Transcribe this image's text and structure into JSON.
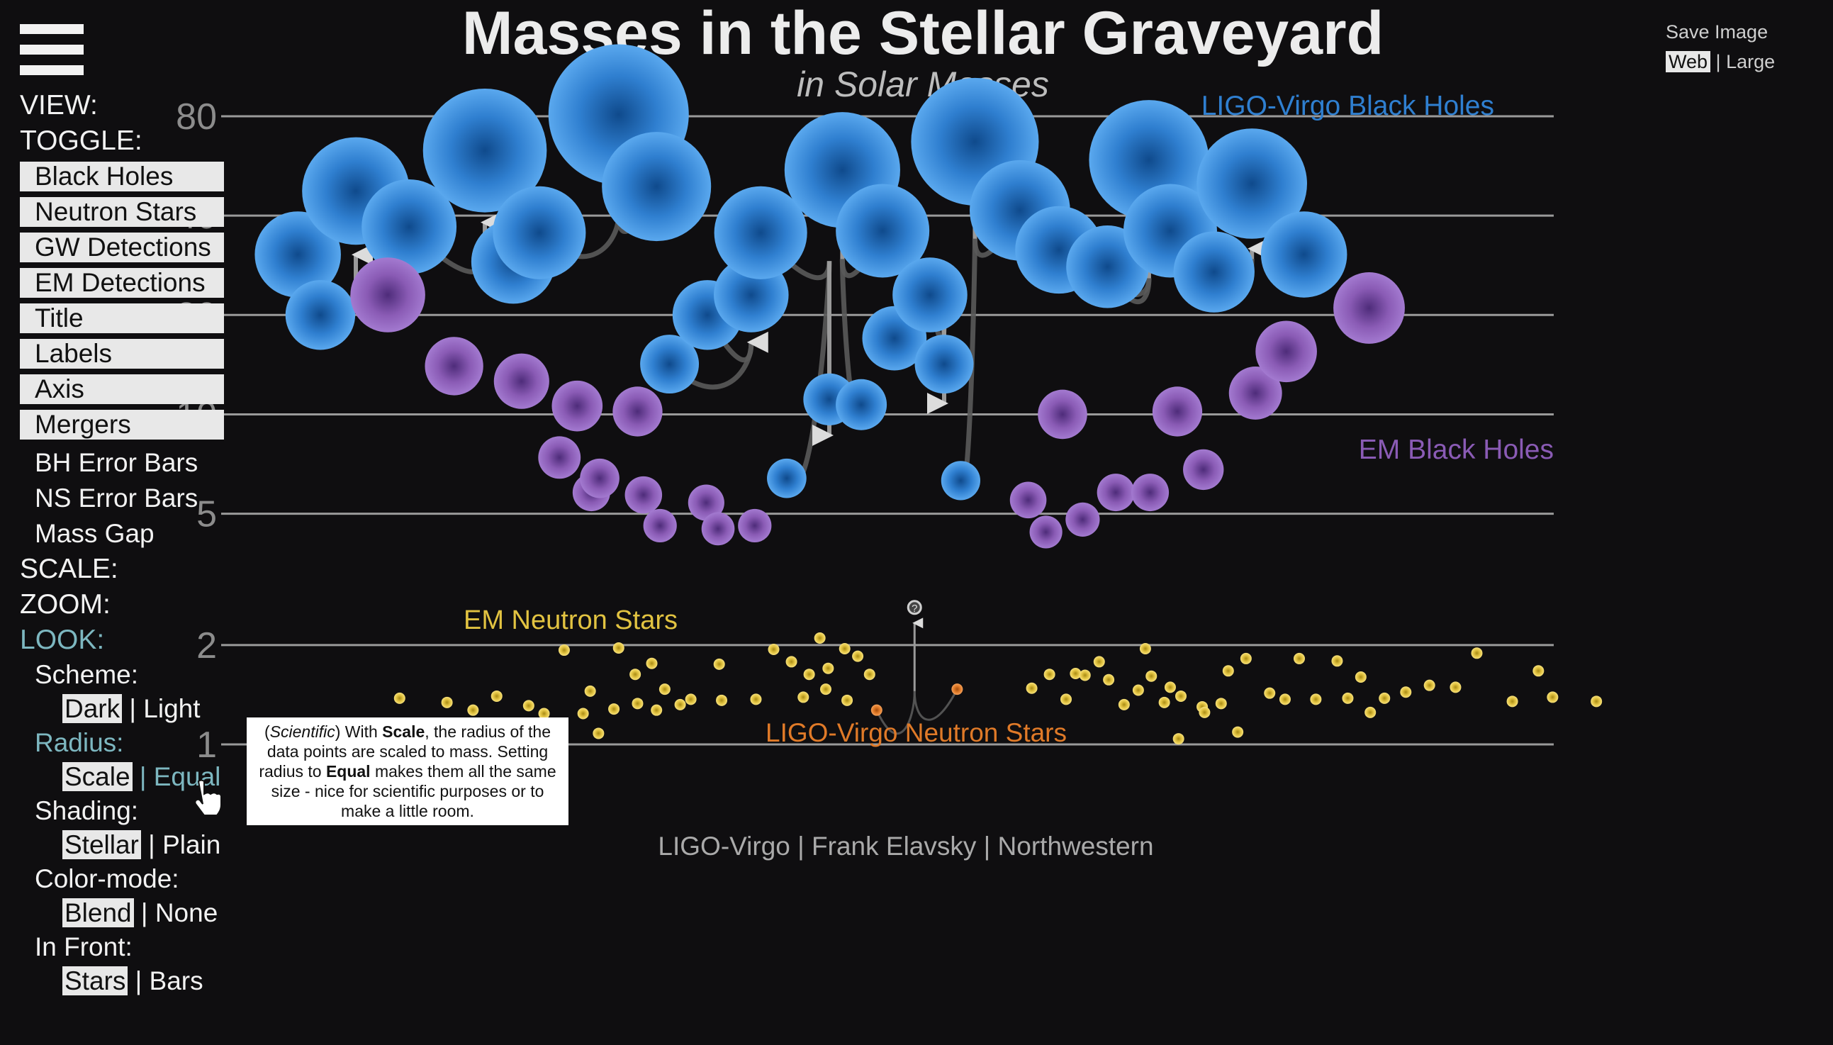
{
  "title": "Masses in the Stellar Graveyard",
  "subtitle": "in Solar Masses",
  "credit": "LIGO-Virgo | Frank Elavsky | Northwestern",
  "save": {
    "label": "Save Image",
    "web": "Web",
    "sep": "|",
    "large": "Large"
  },
  "menu": {
    "view": "VIEW:",
    "toggle": "TOGGLE:",
    "toggle_buttons": [
      "Black Holes",
      "Neutron Stars",
      "GW Detections",
      "EM Detections",
      "Title",
      "Labels",
      "Axis",
      "Mergers"
    ],
    "toggle_plain": [
      "BH Error Bars",
      "NS Error Bars",
      "Mass Gap"
    ],
    "scale": "SCALE:",
    "zoom": "ZOOM:",
    "look": "LOOK:",
    "look_items": [
      {
        "label": "Scheme:",
        "a": "Dark",
        "b": "Light"
      },
      {
        "label": "Radius:",
        "a": "Scale",
        "b": "Equal"
      },
      {
        "label": "Shading:",
        "a": "Stellar",
        "b": "Plain"
      },
      {
        "label": "Color-mode:",
        "a": "Blend",
        "b": "None"
      },
      {
        "label": "In Front:",
        "a": "Stars",
        "b": "Bars"
      }
    ]
  },
  "tooltip": {
    "t1": "Scientific",
    "t2": ") With ",
    "t3": "Scale",
    "t4": ", the radius of the data points are scaled to mass. Setting radius to ",
    "t5": "Equal",
    "t6": " makes them all the same size - nice for scientific purposes or to make a little room."
  },
  "colors": {
    "background": "#0f0e10",
    "ligo_bh": "#2f7fd0",
    "em_bh": "#8a5bb5",
    "em_ns": "#e2c341",
    "ligo_ns": "#e07a28",
    "accent": "#7db7c0"
  },
  "chart_data": {
    "type": "scatter",
    "y_scale": "log",
    "ylim": [
      0.8,
      80
    ],
    "y_ticks": [
      {
        "v": 1,
        "label": "1"
      },
      {
        "v": 2,
        "label": "2"
      },
      {
        "v": 5,
        "label": "5"
      },
      {
        "v": 10,
        "label": "10"
      },
      {
        "v": 20,
        "label": "20"
      },
      {
        "v": 40,
        "label": "40"
      },
      {
        "v": 80,
        "label": "80"
      }
    ],
    "grid": true,
    "series": [
      {
        "name": "LIGO-Virgo Black Holes",
        "key": "ligo_bh",
        "points": [
          [
            0.054,
            30.5
          ],
          [
            0.073,
            20.0
          ],
          [
            0.103,
            47.5
          ],
          [
            0.148,
            37.0
          ],
          [
            0.212,
            63.0
          ],
          [
            0.236,
            29.0
          ],
          [
            0.258,
            35.5
          ],
          [
            0.325,
            81.0
          ],
          [
            0.357,
            49.0
          ],
          [
            0.368,
            14.2
          ],
          [
            0.4,
            20.0
          ],
          [
            0.437,
            23.0
          ],
          [
            0.445,
            35.5
          ],
          [
            0.467,
            6.4
          ],
          [
            0.503,
            11.1
          ],
          [
            0.514,
            55.0
          ],
          [
            0.53,
            10.7
          ],
          [
            0.548,
            36.0
          ],
          [
            0.558,
            17.0
          ],
          [
            0.588,
            23.0
          ],
          [
            0.6,
            14.2
          ],
          [
            0.614,
            6.3
          ],
          [
            0.626,
            67.0
          ],
          [
            0.664,
            41.5
          ],
          [
            0.697,
            31.5
          ],
          [
            0.738,
            28.0
          ],
          [
            0.773,
            59.0
          ],
          [
            0.791,
            36.0
          ],
          [
            0.828,
            27.0
          ],
          [
            0.86,
            50.0
          ],
          [
            0.904,
            30.5
          ]
        ]
      },
      {
        "name": "EM Black Holes",
        "key": "em_bh",
        "points": [
          [
            0.13,
            23.0
          ],
          [
            0.186,
            14.0
          ],
          [
            0.243,
            12.6
          ],
          [
            0.275,
            7.4
          ],
          [
            0.29,
            10.6
          ],
          [
            0.302,
            5.8
          ],
          [
            0.309,
            6.4
          ],
          [
            0.341,
            10.2
          ],
          [
            0.346,
            5.7
          ],
          [
            0.36,
            4.6
          ],
          [
            0.399,
            5.4
          ],
          [
            0.409,
            4.5
          ],
          [
            0.44,
            4.6
          ],
          [
            0.671,
            5.5
          ],
          [
            0.686,
            4.4
          ],
          [
            0.7,
            10.0
          ],
          [
            0.717,
            4.8
          ],
          [
            0.745,
            5.8
          ],
          [
            0.774,
            5.8
          ],
          [
            0.797,
            10.2
          ],
          [
            0.819,
            6.8
          ],
          [
            0.863,
            11.6
          ],
          [
            0.889,
            15.5
          ],
          [
            0.959,
            21.0
          ]
        ]
      },
      {
        "name": "EM Neutron Stars",
        "key": "em_ns",
        "points": [
          [
            0.14,
            1.38
          ],
          [
            0.18,
            1.34
          ],
          [
            0.202,
            1.27
          ],
          [
            0.222,
            1.4
          ],
          [
            0.249,
            1.31
          ],
          [
            0.262,
            1.24
          ],
          [
            0.279,
            1.93
          ],
          [
            0.295,
            1.24
          ],
          [
            0.301,
            1.45
          ],
          [
            0.308,
            1.08
          ],
          [
            0.321,
            1.28
          ],
          [
            0.325,
            1.96
          ],
          [
            0.339,
            1.63
          ],
          [
            0.341,
            1.33
          ],
          [
            0.353,
            1.76
          ],
          [
            0.357,
            1.27
          ],
          [
            0.364,
            1.47
          ],
          [
            0.377,
            1.32
          ],
          [
            0.386,
            1.37
          ],
          [
            0.41,
            1.75
          ],
          [
            0.412,
            1.36
          ],
          [
            0.441,
            1.37
          ],
          [
            0.456,
            1.94
          ],
          [
            0.471,
            1.78
          ],
          [
            0.481,
            1.39
          ],
          [
            0.486,
            1.63
          ],
          [
            0.495,
            2.1
          ],
          [
            0.5,
            1.47
          ],
          [
            0.502,
            1.7
          ],
          [
            0.516,
            1.95
          ],
          [
            0.518,
            1.36
          ],
          [
            0.527,
            1.85
          ],
          [
            0.537,
            1.63
          ],
          [
            0.674,
            1.48
          ],
          [
            0.689,
            1.63
          ],
          [
            0.703,
            1.37
          ],
          [
            0.711,
            1.64
          ],
          [
            0.719,
            1.62
          ],
          [
            0.731,
            1.78
          ],
          [
            0.739,
            1.57
          ],
          [
            0.752,
            1.32
          ],
          [
            0.764,
            1.46
          ],
          [
            0.77,
            1.95
          ],
          [
            0.775,
            1.61
          ],
          [
            0.786,
            1.34
          ],
          [
            0.791,
            1.49
          ],
          [
            0.798,
            1.04
          ],
          [
            0.8,
            1.4
          ],
          [
            0.818,
            1.3
          ],
          [
            0.82,
            1.25
          ],
          [
            0.834,
            1.33
          ],
          [
            0.84,
            1.67
          ],
          [
            0.848,
            1.09
          ],
          [
            0.855,
            1.82
          ],
          [
            0.875,
            1.43
          ],
          [
            0.888,
            1.37
          ],
          [
            0.9,
            1.82
          ],
          [
            0.914,
            1.37
          ],
          [
            0.932,
            1.79
          ],
          [
            0.941,
            1.38
          ],
          [
            0.952,
            1.6
          ],
          [
            0.96,
            1.25
          ],
          [
            0.972,
            1.38
          ],
          [
            0.99,
            1.44
          ],
          [
            1.01,
            1.51
          ],
          [
            1.032,
            1.49
          ],
          [
            1.05,
            1.89
          ],
          [
            1.08,
            1.35
          ],
          [
            1.102,
            1.67
          ],
          [
            1.114,
            1.39
          ],
          [
            1.151,
            1.35
          ]
        ]
      },
      {
        "name": "LIGO-Virgo Neutron Stars",
        "key": "ligo_ns",
        "points": [
          [
            0.543,
            1.27
          ],
          [
            0.611,
            1.47
          ]
        ]
      }
    ],
    "mergers": [
      {
        "a": [
          0.073,
          20.0
        ],
        "b": [
          0.054,
          30.5
        ],
        "r": [
          0.103,
          47.5
        ]
      },
      {
        "a": [
          0.148,
          37.0
        ],
        "b": [
          0.236,
          29.0
        ],
        "r": [
          0.212,
          63.0
        ]
      },
      {
        "a": [
          0.258,
          35.5
        ],
        "b": [
          0.357,
          49.0
        ],
        "r": [
          0.325,
          81.0
        ]
      },
      {
        "a": [
          0.368,
          14.2
        ],
        "b": [
          0.4,
          20.0
        ],
        "r": [
          0.437,
          23.0
        ]
      },
      {
        "a": [
          0.445,
          35.5
        ],
        "b": [
          0.467,
          6.4
        ],
        "r": [
          0.503,
          11.1
        ]
      },
      {
        "a": [
          0.53,
          10.7
        ],
        "b": [
          0.548,
          36.0
        ],
        "r": [
          0.514,
          55.0
        ]
      },
      {
        "a": [
          0.558,
          17.0
        ],
        "b": [
          0.588,
          23.0
        ],
        "r": [
          0.6,
          14.2
        ]
      },
      {
        "a": [
          0.614,
          6.3
        ],
        "b": [
          0.664,
          41.5
        ],
        "r": [
          0.626,
          67.0
        ]
      },
      {
        "a": [
          0.697,
          31.5
        ],
        "b": [
          0.738,
          28.0
        ],
        "r": [
          0.773,
          59.0
        ]
      },
      {
        "a": [
          0.791,
          36.0
        ],
        "b": [
          0.828,
          27.0
        ],
        "r": [
          0.86,
          50.0
        ]
      },
      {
        "a": [
          0.543,
          1.27
        ],
        "b": [
          0.611,
          1.47
        ],
        "r": [
          0.575,
          2.6
        ]
      }
    ],
    "unknown_remnant_label": "?",
    "labels": [
      {
        "text": "LIGO-Virgo Black Holes",
        "key": "ligo_bh"
      },
      {
        "text": "EM Black Holes",
        "key": "em_bh"
      },
      {
        "text": "EM Neutron Stars",
        "key": "em_ns"
      },
      {
        "text": "LIGO-Virgo Neutron Stars",
        "key": "ligo_ns"
      }
    ]
  }
}
